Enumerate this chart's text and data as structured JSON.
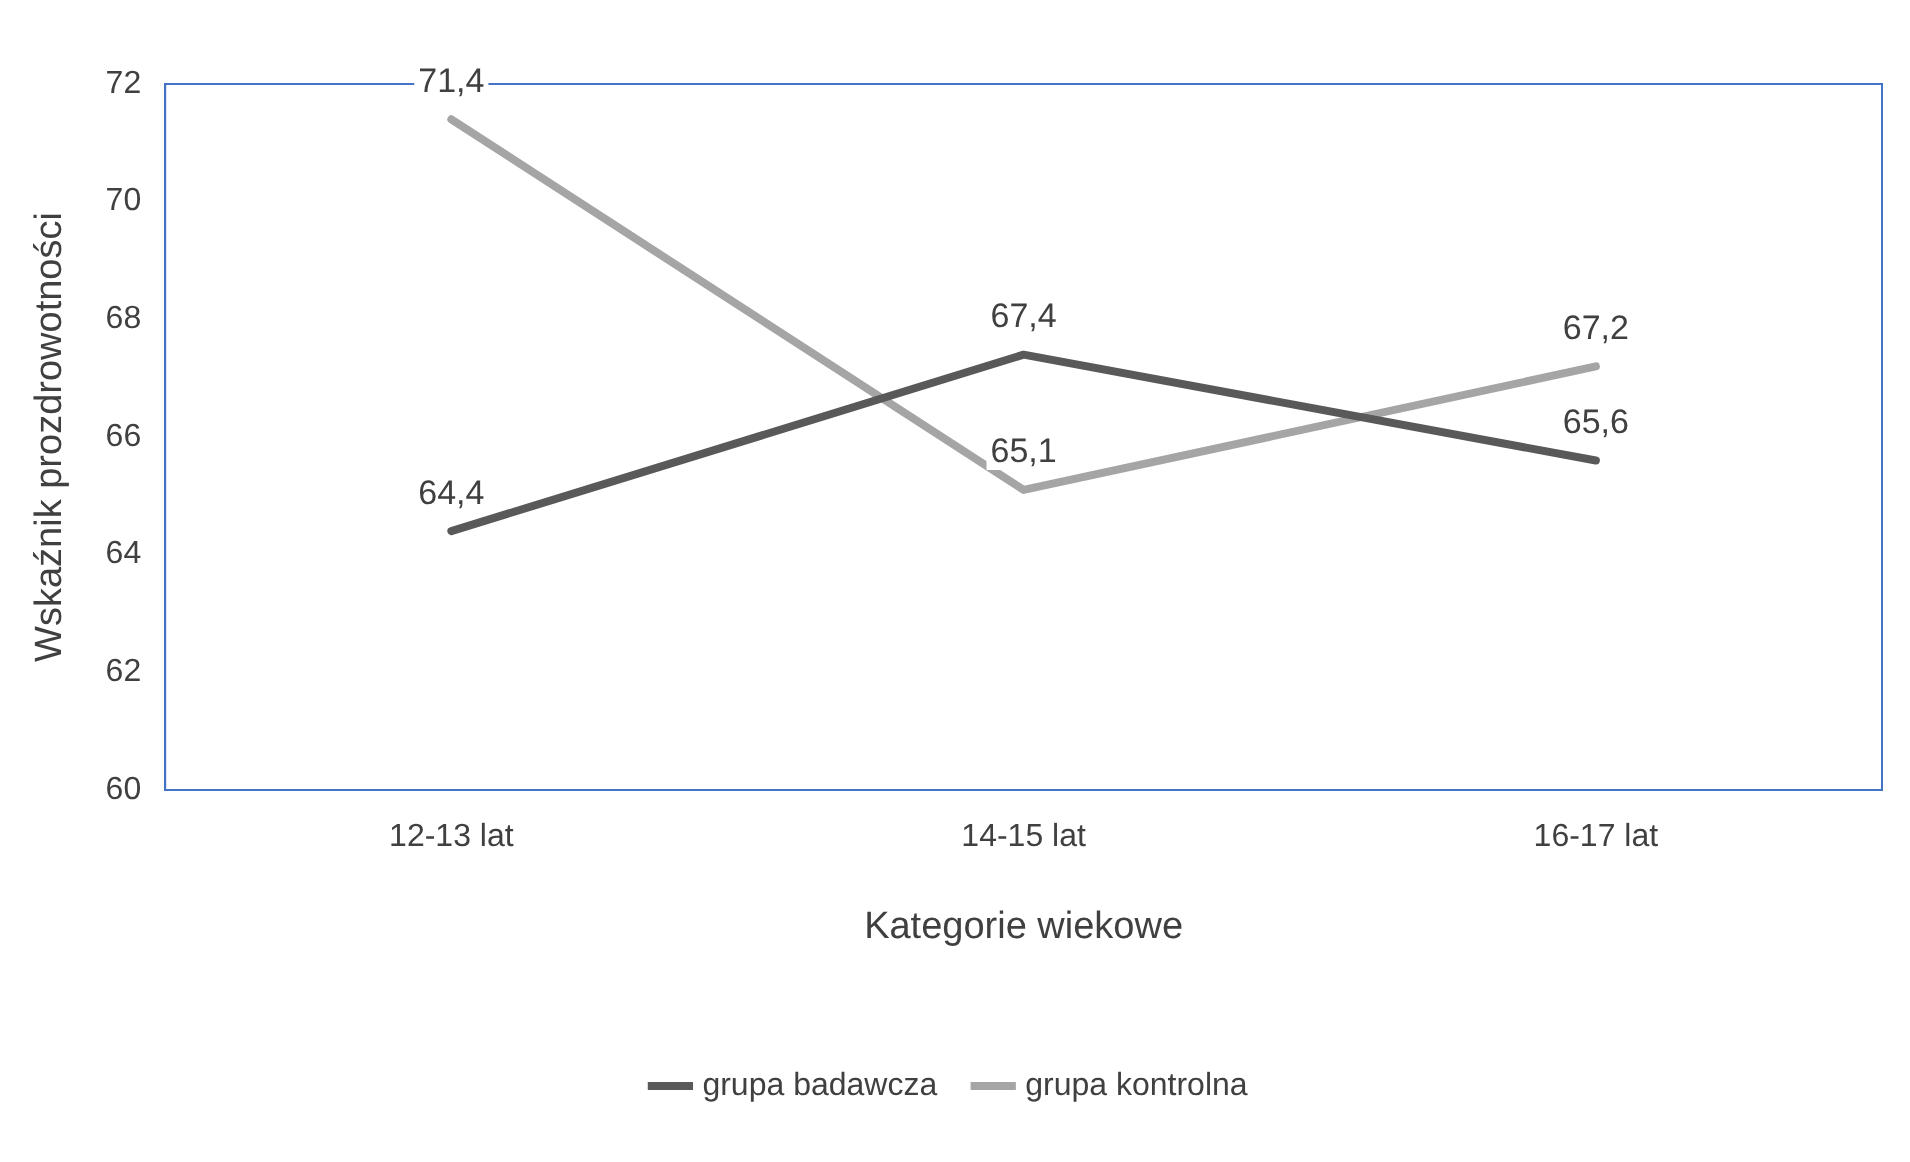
{
  "chart_data": {
    "type": "line",
    "xlabel": "Kategorie wiekowe",
    "ylabel": "Wskaźnik prozdrowotności",
    "categories": [
      "12-13 lat",
      "14-15 lat",
      "16-17 lat"
    ],
    "series": [
      {
        "name": "grupa badawcza",
        "color": "#595959",
        "values": [
          64.4,
          67.4,
          65.6
        ],
        "value_labels": [
          "64,4",
          "67,4",
          "65,6"
        ]
      },
      {
        "name": "grupa kontrolna",
        "color": "#a5a5a5",
        "values": [
          71.4,
          65.1,
          67.2
        ],
        "value_labels": [
          "71,4",
          "65,1",
          "67,2"
        ]
      }
    ],
    "ylim": [
      60,
      72
    ],
    "yticks": [
      60,
      62,
      64,
      66,
      68,
      70,
      72
    ],
    "grid": false,
    "legend": "bottom",
    "marker": "none",
    "line_style": "solid"
  }
}
